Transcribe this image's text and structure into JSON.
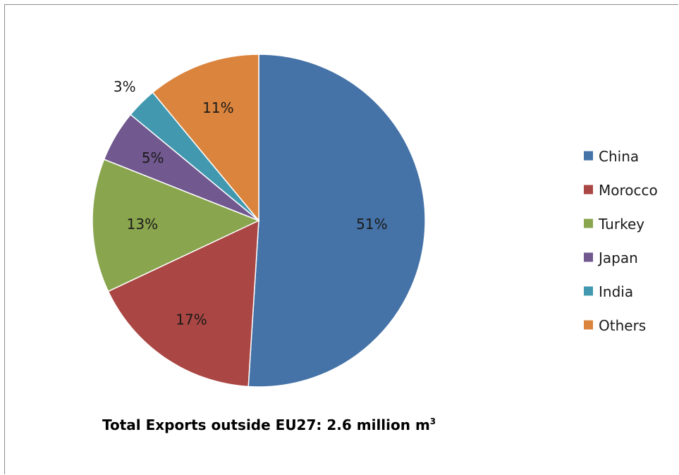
{
  "chart_data": {
    "type": "pie",
    "series": [
      {
        "name": "China",
        "value": 51,
        "label": "51%",
        "color": "#4572A7"
      },
      {
        "name": "Morocco",
        "value": 17,
        "label": "17%",
        "color": "#AA4643"
      },
      {
        "name": "Turkey",
        "value": 13,
        "label": "13%",
        "color": "#89A54E"
      },
      {
        "name": "Japan",
        "value": 5,
        "label": "5%",
        "color": "#71588F"
      },
      {
        "name": "India",
        "value": 3,
        "label": "3%",
        "color": "#4198AF"
      },
      {
        "name": "Others",
        "value": 11,
        "label": "11%",
        "color": "#DB843D"
      }
    ],
    "caption": {
      "text": "Total Exports outside EU27: 2.6 million m",
      "superscript": "3"
    },
    "legend_position": "right",
    "start_angle": "12 o'clock",
    "direction": "clockwise"
  }
}
